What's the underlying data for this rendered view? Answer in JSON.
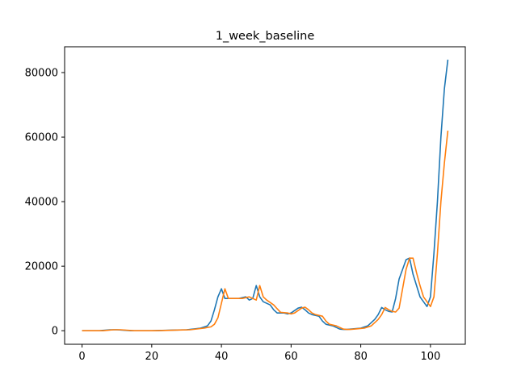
{
  "chart_data": {
    "type": "line",
    "title": "1_week_baseline",
    "xlabel": "",
    "ylabel": "",
    "xlim": [
      -5,
      110
    ],
    "ylim": [
      -4200,
      88000
    ],
    "xticks": [
      0,
      20,
      40,
      60,
      80,
      100
    ],
    "yticks": [
      0,
      20000,
      40000,
      60000,
      80000
    ],
    "grid": false,
    "series": [
      {
        "color": "#1f77b4",
        "x": [
          0,
          5,
          8,
          10,
          14,
          20,
          26,
          30,
          34,
          36,
          37,
          38,
          39,
          40,
          41,
          43,
          45,
          47,
          48,
          49,
          50,
          51,
          52,
          54,
          55,
          56,
          58,
          59,
          60,
          62,
          63,
          64,
          65,
          66,
          68,
          69,
          70,
          72,
          74,
          75,
          76,
          78,
          80,
          82,
          84,
          85,
          86,
          87,
          88,
          89,
          90,
          91,
          92,
          93,
          94,
          95,
          96,
          97,
          98,
          99,
          100,
          101,
          102,
          103,
          104,
          105
        ],
        "y": [
          0,
          0,
          300,
          300,
          0,
          0,
          200,
          300,
          800,
          1500,
          3000,
          6500,
          10500,
          13000,
          10000,
          10000,
          10000,
          10500,
          9500,
          10000,
          14000,
          10500,
          9000,
          8000,
          6500,
          5500,
          5500,
          5200,
          5500,
          7000,
          7300,
          6500,
          5500,
          5000,
          4500,
          3000,
          2000,
          1500,
          500,
          400,
          400,
          600,
          800,
          1500,
          3500,
          5000,
          7200,
          6500,
          6000,
          5800,
          10000,
          16000,
          19000,
          22000,
          22500,
          17500,
          14000,
          10500,
          9000,
          7500,
          10500,
          24000,
          40000,
          60000,
          75000,
          84000
        ]
      },
      {
        "color": "#ff7f0e",
        "x": [
          0,
          6,
          9,
          11,
          15,
          21,
          27,
          31,
          35,
          37,
          38,
          39,
          40,
          41,
          42,
          44,
          46,
          48,
          49,
          50,
          51,
          52,
          53,
          55,
          56,
          57,
          59,
          60,
          61,
          63,
          64,
          65,
          66,
          67,
          69,
          70,
          71,
          73,
          75,
          76,
          77,
          79,
          81,
          83,
          85,
          86,
          87,
          88,
          89,
          90,
          91,
          92,
          93,
          94,
          95,
          96,
          97,
          98,
          99,
          100,
          101,
          102,
          103,
          104,
          105
        ],
        "y": [
          0,
          0,
          300,
          300,
          0,
          0,
          200,
          300,
          800,
          1200,
          2000,
          4000,
          8500,
          13000,
          10000,
          10000,
          10000,
          10500,
          10000,
          9500,
          14000,
          10500,
          9500,
          8000,
          6800,
          5700,
          5500,
          5200,
          5500,
          7000,
          7300,
          6500,
          5500,
          5000,
          4500,
          3000,
          2000,
          1500,
          500,
          400,
          400,
          600,
          800,
          1500,
          3500,
          5000,
          7200,
          6500,
          6000,
          5800,
          7000,
          13000,
          19000,
          22500,
          22500,
          18000,
          14000,
          10500,
          9000,
          7500,
          10500,
          24000,
          40000,
          52000,
          62000
        ]
      }
    ]
  }
}
